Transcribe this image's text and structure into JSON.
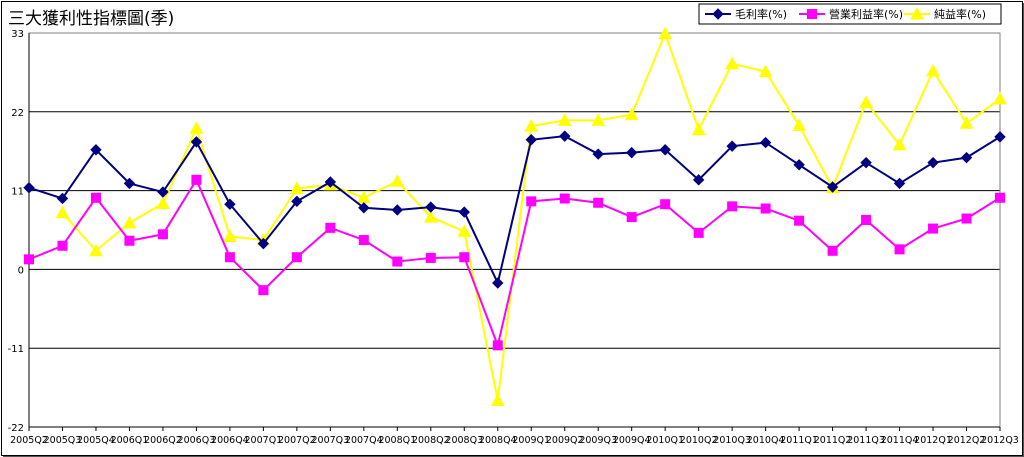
{
  "chart_data": {
    "type": "line",
    "title": "三大獲利性指標圖(季)",
    "xlabel": "",
    "ylabel": "",
    "ylim": [
      -22,
      33
    ],
    "yticks": [
      -22,
      -11,
      0,
      11,
      22,
      33
    ],
    "grid": true,
    "legend_position": "top-right",
    "categories": [
      "2005Q2",
      "2005Q3",
      "2005Q4",
      "2006Q1",
      "2006Q2",
      "2006Q3",
      "2006Q4",
      "2007Q1",
      "2007Q2",
      "2007Q3",
      "2007Q4",
      "2008Q1",
      "2008Q2",
      "2008Q3",
      "2008Q4",
      "2009Q1",
      "2009Q2",
      "2009Q3",
      "2009Q4",
      "2010Q1",
      "2010Q2",
      "2010Q3",
      "2010Q4",
      "2011Q1",
      "2011Q2",
      "2011Q3",
      "2011Q4",
      "2012Q1",
      "2012Q2",
      "2012Q3"
    ],
    "series": [
      {
        "name": "毛利率(%)",
        "color": "#000080",
        "marker": "diamond",
        "values": [
          11.4,
          9.9,
          16.7,
          12.0,
          10.8,
          17.8,
          9.1,
          3.6,
          9.5,
          12.2,
          8.6,
          8.3,
          8.7,
          8.0,
          -1.9,
          18.1,
          18.6,
          16.1,
          16.3,
          16.7,
          12.5,
          17.2,
          17.7,
          14.6,
          11.5,
          14.9,
          12.0,
          14.9,
          15.6,
          18.5
        ]
      },
      {
        "name": "營業利益率(%)",
        "color": "#FF00FF",
        "marker": "square",
        "values": [
          1.4,
          3.3,
          10.0,
          4.0,
          4.9,
          12.5,
          1.7,
          -2.9,
          1.7,
          5.8,
          4.1,
          1.1,
          1.6,
          1.7,
          -10.6,
          9.5,
          9.9,
          9.3,
          7.3,
          9.1,
          5.1,
          8.8,
          8.5,
          6.8,
          2.6,
          6.9,
          2.8,
          5.7,
          7.1,
          10.0
        ]
      },
      {
        "name": "純益率(%)",
        "color": "#FFFF00",
        "marker": "triangle",
        "values": [
          null,
          7.9,
          2.6,
          6.5,
          9.2,
          19.7,
          4.6,
          4.1,
          11.3,
          11.8,
          10.0,
          12.3,
          7.3,
          5.3,
          -18.3,
          20.0,
          20.8,
          20.8,
          21.6,
          32.9,
          19.5,
          28.7,
          27.6,
          20.1,
          11.4,
          23.3,
          17.4,
          27.7,
          20.4,
          23.8
        ]
      }
    ]
  }
}
